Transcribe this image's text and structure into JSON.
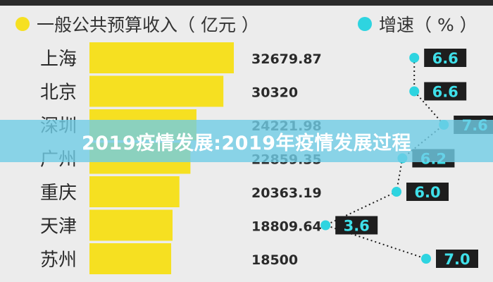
{
  "legend": {
    "revenue_label": "一般公共预算收入（ 亿元 ）",
    "growth_label": "增速（ % ）"
  },
  "colors": {
    "bar": "#f6e021",
    "dot": "#2ed4e0",
    "badge_bg": "#1e1e1e",
    "badge_text": "#3fe0ea",
    "text": "#2a2a2a",
    "background": "#ececec"
  },
  "banner": {
    "text": "2019疫情发展:2019年疫情发展过程"
  },
  "chart_data": {
    "type": "bar",
    "orientation": "horizontal",
    "categories": [
      "上海",
      "北京",
      "深圳",
      "广州",
      "重庆",
      "天津",
      "苏州"
    ],
    "series": [
      {
        "name": "一般公共预算收入（ 亿元 ）",
        "values": [
          32679.87,
          30320,
          24221.98,
          22859.35,
          20363.19,
          18809.64,
          18500
        ]
      },
      {
        "name": "增速（ % ）",
        "values": [
          6.6,
          6.6,
          7.6,
          6.2,
          6.0,
          3.6,
          7.0
        ]
      }
    ],
    "value_labels": [
      "32679.87",
      "30320",
      "24221.98",
      "22859.35",
      "20363.19",
      "18809.64",
      "18500"
    ],
    "growth_labels": [
      "6.6",
      "6.6",
      "7.6",
      "6.2",
      "6.0",
      "3.6",
      "7.0"
    ],
    "grid": false,
    "legend_position": "top"
  }
}
